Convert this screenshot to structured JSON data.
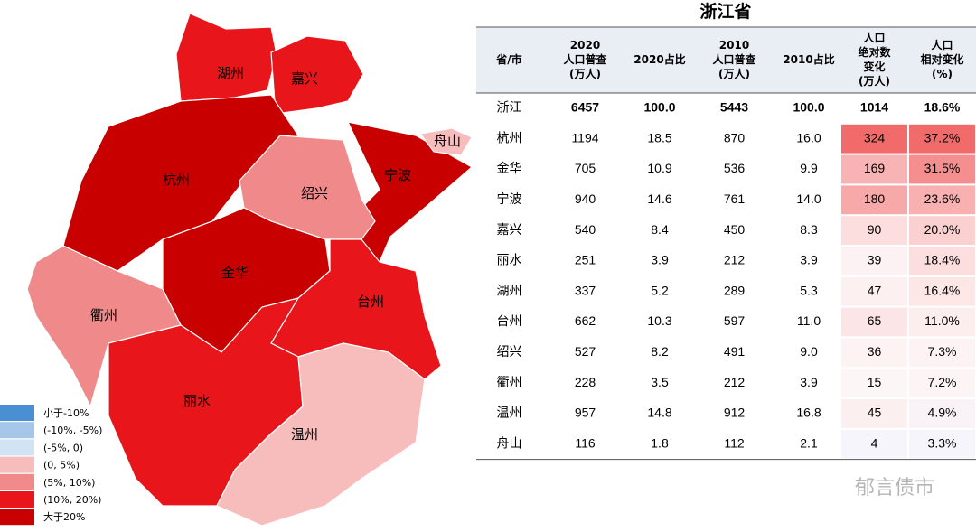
{
  "map": {
    "regions": [
      {
        "name": "湖州",
        "color": "#e8161a"
      },
      {
        "name": "嘉兴",
        "color": "#e8161a"
      },
      {
        "name": "杭州",
        "color": "#c80000"
      },
      {
        "name": "宁波",
        "color": "#c80000"
      },
      {
        "name": "舟山",
        "color": "#f7bdbd"
      },
      {
        "name": "绍兴",
        "color": "#f08a8a"
      },
      {
        "name": "金华",
        "color": "#c80000"
      },
      {
        "name": "衢州",
        "color": "#f08a8a"
      },
      {
        "name": "台州",
        "color": "#e8161a"
      },
      {
        "name": "丽水",
        "color": "#e8161a"
      },
      {
        "name": "温州",
        "color": "#f7bdbd"
      }
    ],
    "legend": [
      {
        "label": "小于-10%",
        "color": "#4a8fd4"
      },
      {
        "label": "(-10%, -5%)",
        "color": "#a5c6e8"
      },
      {
        "label": "(-5%, 0)",
        "color": "#d2e3f4"
      },
      {
        "label": "(0, 5%)",
        "color": "#f7bdbd"
      },
      {
        "label": "(5%, 10%)",
        "color": "#f08a8a"
      },
      {
        "label": "(10%, 20%)",
        "color": "#e8161a"
      },
      {
        "label": "大于20%",
        "color": "#c80000"
      }
    ]
  },
  "table": {
    "title": "浙江省",
    "headers": [
      [
        "省/市"
      ],
      [
        "2020",
        "人口普查",
        "(万人)"
      ],
      [
        "2020占比"
      ],
      [
        "2010",
        "人口普查",
        "(万人)"
      ],
      [
        "2010占比"
      ],
      [
        "人口",
        "绝对数",
        "变化",
        "(万人)"
      ],
      [
        "人口",
        "相对变化",
        "(%)"
      ]
    ],
    "rows": [
      [
        "浙江",
        "6457",
        "100.0",
        "5443",
        "100.0",
        "1014",
        "18.6%"
      ],
      [
        "杭州",
        "1194",
        "18.5",
        "870",
        "16.0",
        "324",
        "37.2%"
      ],
      [
        "金华",
        "705",
        "10.9",
        "536",
        "9.9",
        "169",
        "31.5%"
      ],
      [
        "宁波",
        "940",
        "14.6",
        "761",
        "14.0",
        "180",
        "23.6%"
      ],
      [
        "嘉兴",
        "540",
        "8.4",
        "450",
        "8.3",
        "90",
        "20.0%"
      ],
      [
        "丽水",
        "251",
        "3.9",
        "212",
        "3.9",
        "39",
        "18.4%"
      ],
      [
        "湖州",
        "337",
        "5.2",
        "289",
        "5.3",
        "47",
        "16.4%"
      ],
      [
        "台州",
        "662",
        "10.3",
        "597",
        "11.0",
        "65",
        "11.0%"
      ],
      [
        "绍兴",
        "527",
        "8.2",
        "491",
        "9.0",
        "36",
        "7.3%"
      ],
      [
        "衢州",
        "228",
        "3.5",
        "212",
        "3.9",
        "15",
        "7.2%"
      ],
      [
        "温州",
        "957",
        "14.8",
        "912",
        "16.8",
        "45",
        "4.9%"
      ],
      [
        "舟山",
        "116",
        "1.8",
        "112",
        "2.1",
        "4",
        "3.3%"
      ]
    ],
    "heat_colors": [
      null,
      [
        "#f26b6b",
        "#f26b6b"
      ],
      [
        "#f8b4b4",
        "#f58f8f"
      ],
      [
        "#f7a9a9",
        "#f8b0b0"
      ],
      [
        "#fcdede",
        "#fbd0d0"
      ],
      [
        "#fdf2f3",
        "#fcdede"
      ],
      [
        "#fcf0f0",
        "#fde6e6"
      ],
      [
        "#fbe5e6",
        "#fdeeee"
      ],
      [
        "#fef3f3",
        "#fdf3f4"
      ],
      [
        "#fdf6f7",
        "#fdf4f5"
      ],
      [
        "#fcefef",
        "#f9f3f7"
      ],
      [
        "#f6f5fb",
        "#f6f5fb"
      ]
    ]
  },
  "watermark": "郁言债市"
}
